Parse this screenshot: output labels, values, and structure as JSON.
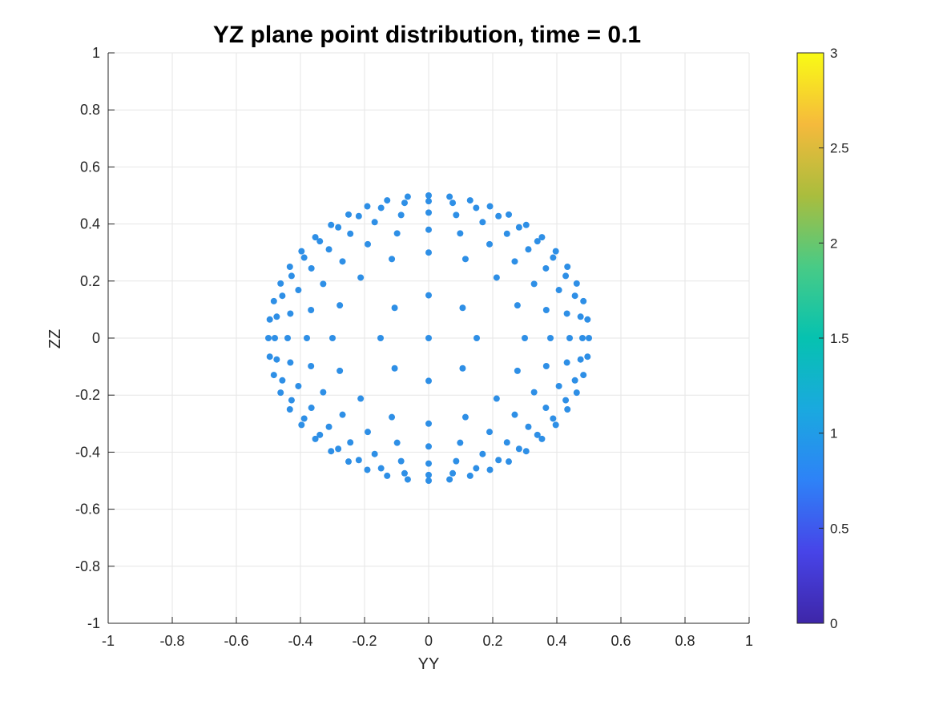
{
  "chart_data": {
    "type": "scatter",
    "title": "YZ plane point distribution, time = 0.1",
    "xlabel": "YY",
    "ylabel": "ZZ",
    "xlim": [
      -1,
      1
    ],
    "ylim": [
      -1,
      1
    ],
    "xticks": [
      "-1",
      "-0.8",
      "-0.6",
      "-0.4",
      "-0.2",
      "0",
      "0.2",
      "0.4",
      "0.6",
      "0.8",
      "1"
    ],
    "yticks": [
      "-1",
      "-0.8",
      "-0.6",
      "-0.4",
      "-0.2",
      "0",
      "0.2",
      "0.4",
      "0.6",
      "0.8",
      "1"
    ],
    "grid": true,
    "point_color": "#2E8FE6",
    "colorbar": {
      "range": [
        0,
        3
      ],
      "ticks": [
        "0",
        "0.5",
        "1",
        "1.5",
        "2",
        "2.5",
        "3"
      ],
      "colormap": "parula",
      "colors": [
        "#3E26A8",
        "#4744E8",
        "#2E82F7",
        "#1AA9DF",
        "#06C2B0",
        "#48CB86",
        "#AABD3D",
        "#F5BA3C",
        "#F9FB15"
      ]
    },
    "description": "Points lie on concentric rings (radii ~0.15, 0.3, 0.4, 0.45, 0.5) forming a disk of radius 0.5 centered at origin",
    "rings": [
      {
        "r": 0.15,
        "count": 8
      },
      {
        "r": 0.3,
        "count": 16
      },
      {
        "r": 0.38,
        "count": 24
      },
      {
        "r": 0.44,
        "count": 32
      },
      {
        "r": 0.48,
        "count": 40
      },
      {
        "r": 0.5,
        "count": 48
      }
    ],
    "center_point": [
      0,
      0
    ]
  }
}
